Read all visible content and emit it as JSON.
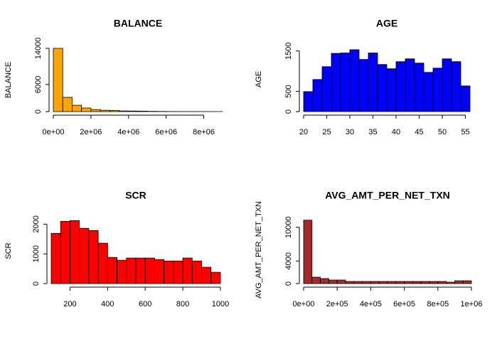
{
  "chart_data": [
    {
      "type": "histogram",
      "title": "BALANCE",
      "y_label": "BALANCE",
      "color": "#FFA500",
      "bins": [
        0,
        500000,
        1000000,
        1500000,
        2000000,
        2500000,
        3000000,
        3500000,
        4000000,
        4500000,
        5000000,
        5500000,
        6000000,
        6500000,
        7000000,
        7500000,
        8000000,
        8500000,
        9000000
      ],
      "values": [
        14000,
        3150,
        1400,
        800,
        450,
        300,
        250,
        150,
        120,
        100,
        60,
        40,
        20,
        15,
        10,
        8,
        5,
        3
      ],
      "xlim": [
        0,
        9000000
      ],
      "ylim": [
        0,
        14000
      ],
      "xticks": [
        {
          "value": 0,
          "label": "0e+00"
        },
        {
          "value": 2000000,
          "label": "2e+06"
        },
        {
          "value": 4000000,
          "label": "4e+06"
        },
        {
          "value": 6000000,
          "label": "6e+06"
        },
        {
          "value": 8000000,
          "label": "8e+06"
        }
      ],
      "yticks": [
        0,
        6000,
        14000
      ]
    },
    {
      "type": "histogram",
      "title": "AGE",
      "y_label": "AGE",
      "color": "#0000FF",
      "bins": [
        20,
        22,
        24,
        26,
        28,
        30,
        32,
        34,
        36,
        38,
        40,
        42,
        44,
        46,
        48,
        50,
        52,
        54,
        56
      ],
      "values": [
        494,
        794,
        1111,
        1440,
        1450,
        1530,
        1290,
        1450,
        1165,
        1060,
        1235,
        1305,
        1200,
        970,
        1075,
        1305,
        1235,
        635
      ],
      "xlim": [
        20,
        56
      ],
      "ylim": [
        0,
        1600
      ],
      "xticks": [
        20,
        25,
        30,
        35,
        40,
        45,
        50,
        55
      ],
      "yticks": [
        0,
        500,
        1500
      ]
    },
    {
      "type": "histogram",
      "title": "SCR",
      "y_label": "SCR",
      "color": "#FF0000",
      "bins": [
        100,
        150,
        200,
        250,
        300,
        350,
        400,
        450,
        500,
        550,
        600,
        650,
        700,
        750,
        800,
        850,
        900,
        950,
        1000
      ],
      "values": [
        1690,
        2095,
        2120,
        1860,
        1785,
        1360,
        880,
        785,
        860,
        860,
        860,
        810,
        760,
        760,
        860,
        760,
        550,
        380
      ],
      "xlim": [
        100,
        1000
      ],
      "ylim": [
        0,
        2200
      ],
      "xticks": [
        200,
        400,
        600,
        800,
        1000
      ],
      "yticks": [
        0,
        1000,
        2000
      ]
    },
    {
      "type": "histogram",
      "title": "AVG_AMT_PER_NET_TXN",
      "y_label": "AVG_AMT_PER_NET_TXN",
      "color": "#A52A2A",
      "bins": [
        0,
        50000,
        100000,
        150000,
        200000,
        250000,
        300000,
        350000,
        400000,
        450000,
        500000,
        550000,
        600000,
        650000,
        700000,
        750000,
        800000,
        850000,
        900000,
        950000,
        1000000
      ],
      "values": [
        11270,
        1140,
        890,
        630,
        630,
        380,
        380,
        380,
        380,
        380,
        380,
        380,
        380,
        380,
        380,
        380,
        380,
        250,
        500,
        500
      ],
      "xlim": [
        0,
        1000000
      ],
      "ylim": [
        0,
        12000
      ],
      "xticks": [
        {
          "value": 0,
          "label": "0e+00"
        },
        {
          "value": 200000,
          "label": "2e+05"
        },
        {
          "value": 400000,
          "label": "4e+05"
        },
        {
          "value": 600000,
          "label": "6e+05"
        },
        {
          "value": 800000,
          "label": "8e+05"
        },
        {
          "value": 1000000,
          "label": "1e+06"
        }
      ],
      "yticks": [
        0,
        4000,
        10000
      ]
    }
  ]
}
